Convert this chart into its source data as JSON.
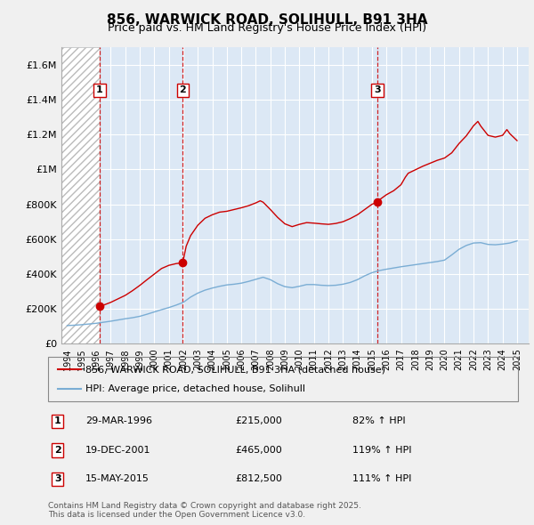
{
  "title": "856, WARWICK ROAD, SOLIHULL, B91 3HA",
  "subtitle": "Price paid vs. HM Land Registry's House Price Index (HPI)",
  "ylim": [
    0,
    1700000
  ],
  "yticks": [
    0,
    200000,
    400000,
    600000,
    800000,
    1000000,
    1200000,
    1400000,
    1600000
  ],
  "ytick_labels": [
    "£0",
    "£200K",
    "£400K",
    "£600K",
    "£800K",
    "£1M",
    "£1.2M",
    "£1.4M",
    "£1.6M"
  ],
  "xlim_start": 1993.6,
  "xlim_end": 2025.8,
  "background_color": "#dce8f5",
  "grid_color": "#ffffff",
  "transactions": [
    {
      "num": 1,
      "year": 1996.24,
      "price": 215000,
      "date": "29-MAR-1996",
      "pct": "82%",
      "dir": "↑"
    },
    {
      "num": 2,
      "year": 2001.96,
      "price": 465000,
      "date": "19-DEC-2001",
      "pct": "119%",
      "dir": "↑"
    },
    {
      "num": 3,
      "year": 2015.37,
      "price": 812500,
      "date": "15-MAY-2015",
      "pct": "111%",
      "dir": "↑"
    }
  ],
  "legend_line1": "856, WARWICK ROAD, SOLIHULL, B91 3HA (detached house)",
  "legend_line2": "HPI: Average price, detached house, Solihull",
  "footer_line1": "Contains HM Land Registry data © Crown copyright and database right 2025.",
  "footer_line2": "This data is licensed under the Open Government Licence v3.0.",
  "red_line_color": "#cc0000",
  "blue_line_color": "#7aadd4",
  "title_fontsize": 11,
  "subtitle_fontsize": 9,
  "hpi_years": [
    1994,
    1994.5,
    1995,
    1995.5,
    1996,
    1996.5,
    1997,
    1997.5,
    1998,
    1998.5,
    1999,
    1999.5,
    2000,
    2000.5,
    2001,
    2001.5,
    2002,
    2002.5,
    2003,
    2003.5,
    2004,
    2004.5,
    2005,
    2005.5,
    2006,
    2006.5,
    2007,
    2007.5,
    2008,
    2008.5,
    2009,
    2009.5,
    2010,
    2010.5,
    2011,
    2011.5,
    2012,
    2012.5,
    2013,
    2013.5,
    2014,
    2014.5,
    2015,
    2015.5,
    2016,
    2016.5,
    2017,
    2017.5,
    2018,
    2018.5,
    2019,
    2019.5,
    2020,
    2020.5,
    2021,
    2021.5,
    2022,
    2022.5,
    2023,
    2023.5,
    2024,
    2024.5,
    2025
  ],
  "hpi_values": [
    105000,
    107000,
    110000,
    114000,
    118000,
    124000,
    130000,
    137000,
    144000,
    150000,
    158000,
    170000,
    183000,
    196000,
    208000,
    222000,
    238000,
    268000,
    291000,
    308000,
    320000,
    330000,
    338000,
    342000,
    348000,
    358000,
    370000,
    382000,
    368000,
    345000,
    328000,
    322000,
    330000,
    340000,
    340000,
    336000,
    334000,
    336000,
    342000,
    352000,
    368000,
    390000,
    408000,
    420000,
    428000,
    435000,
    442000,
    448000,
    454000,
    460000,
    466000,
    472000,
    480000,
    510000,
    542000,
    564000,
    578000,
    580000,
    570000,
    568000,
    572000,
    578000,
    590000
  ],
  "red_years": [
    1996.24,
    1996.5,
    1997,
    1997.5,
    1998,
    1998.5,
    1999,
    1999.5,
    2000,
    2000.5,
    2001,
    2001.5,
    2001.96,
    2002.2,
    2002.5,
    2003,
    2003.5,
    2004,
    2004.5,
    2005,
    2005.5,
    2006,
    2006.5,
    2007,
    2007.3,
    2007.5,
    2008,
    2008.5,
    2009,
    2009.5,
    2010,
    2010.5,
    2011,
    2011.5,
    2012,
    2012.5,
    2013,
    2013.5,
    2014,
    2014.5,
    2015,
    2015.37,
    2015.5,
    2016,
    2016.5,
    2017,
    2017.3,
    2017.5,
    2018,
    2018.5,
    2019,
    2019.5,
    2020,
    2020.5,
    2021,
    2021.5,
    2022,
    2022.3,
    2022.5,
    2023,
    2023.5,
    2024,
    2024.3,
    2024.5,
    2025
  ],
  "red_values": [
    215000,
    222000,
    238000,
    258000,
    278000,
    305000,
    335000,
    368000,
    400000,
    432000,
    450000,
    460000,
    465000,
    560000,
    620000,
    680000,
    720000,
    740000,
    755000,
    760000,
    770000,
    780000,
    792000,
    808000,
    820000,
    812000,
    770000,
    725000,
    688000,
    672000,
    685000,
    695000,
    692000,
    688000,
    685000,
    690000,
    700000,
    718000,
    740000,
    770000,
    800000,
    812500,
    825000,
    855000,
    878000,
    912000,
    955000,
    978000,
    998000,
    1018000,
    1035000,
    1052000,
    1065000,
    1095000,
    1148000,
    1192000,
    1250000,
    1275000,
    1248000,
    1195000,
    1185000,
    1195000,
    1228000,
    1205000,
    1165000
  ]
}
